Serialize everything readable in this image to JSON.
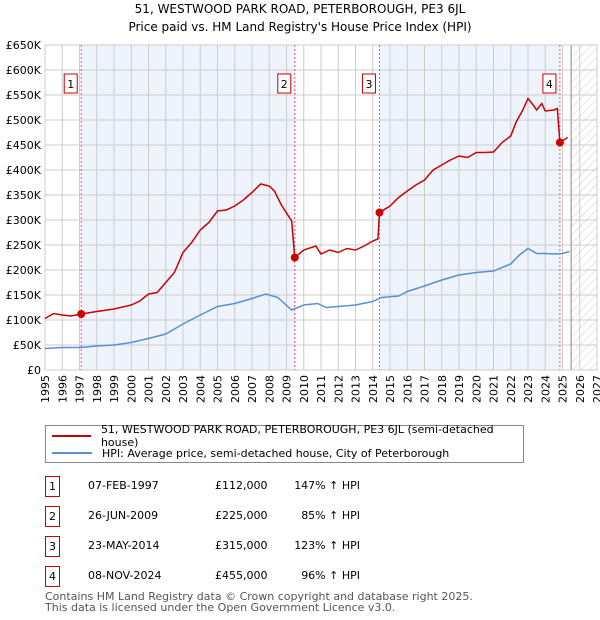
{
  "chart_data": {
    "type": "line",
    "title": "51, WESTWOOD PARK ROAD, PETERBOROUGH, PE3 6JL",
    "subtitle": "Price paid vs. HM Land Registry's House Price Index (HPI)",
    "xlim": [
      1995,
      2027
    ],
    "ylim": [
      0,
      650000
    ],
    "x_ticks": [
      "1995",
      "1996",
      "1997",
      "1998",
      "1999",
      "2000",
      "2001",
      "2002",
      "2003",
      "2004",
      "2005",
      "2006",
      "2007",
      "2008",
      "2009",
      "2010",
      "2011",
      "2012",
      "2013",
      "2014",
      "2015",
      "2016",
      "2017",
      "2018",
      "2019",
      "2020",
      "2021",
      "2022",
      "2023",
      "2024",
      "2025",
      "2026",
      "2027"
    ],
    "y_ticks": [
      "£0",
      "£50K",
      "£100K",
      "£150K",
      "£200K",
      "£250K",
      "£300K",
      "£350K",
      "£400K",
      "£450K",
      "£500K",
      "£550K",
      "£600K",
      "£650K"
    ],
    "grid": true,
    "series": [
      {
        "name": "51, WESTWOOD PARK ROAD, PETERBOROUGH, PE3 6JL (semi-detached house)",
        "color": "#cc0000",
        "points": [
          [
            1995,
            103
          ],
          [
            1995.5,
            113
          ],
          [
            1996,
            110
          ],
          [
            1996.5,
            108
          ],
          [
            1997.1,
            112
          ],
          [
            1998,
            117
          ],
          [
            1999,
            122
          ],
          [
            2000,
            130
          ],
          [
            2000.5,
            138
          ],
          [
            2001,
            152
          ],
          [
            2001.5,
            155
          ],
          [
            2002,
            175
          ],
          [
            2002.5,
            195
          ],
          [
            2003,
            235
          ],
          [
            2003.5,
            255
          ],
          [
            2004,
            280
          ],
          [
            2004.5,
            295
          ],
          [
            2005,
            318
          ],
          [
            2005.5,
            320
          ],
          [
            2006,
            328
          ],
          [
            2006.5,
            340
          ],
          [
            2007,
            355
          ],
          [
            2007.5,
            372
          ],
          [
            2008,
            368
          ],
          [
            2008.3,
            358
          ],
          [
            2008.7,
            330
          ],
          [
            2009.3,
            298
          ],
          [
            2009.48,
            225
          ],
          [
            2010,
            240
          ],
          [
            2010.7,
            248
          ],
          [
            2011,
            232
          ],
          [
            2011.5,
            240
          ],
          [
            2012,
            235
          ],
          [
            2012.5,
            243
          ],
          [
            2013,
            240
          ],
          [
            2013.5,
            248
          ],
          [
            2014,
            258
          ],
          [
            2014.3,
            262
          ],
          [
            2014.39,
            315
          ],
          [
            2015,
            328
          ],
          [
            2015.5,
            345
          ],
          [
            2016,
            358
          ],
          [
            2016.5,
            370
          ],
          [
            2017,
            380
          ],
          [
            2017.5,
            400
          ],
          [
            2018,
            410
          ],
          [
            2018.5,
            420
          ],
          [
            2019,
            428
          ],
          [
            2019.5,
            425
          ],
          [
            2020,
            435
          ],
          [
            2020.5,
            435
          ],
          [
            2021,
            436
          ],
          [
            2021.5,
            455
          ],
          [
            2022,
            468
          ],
          [
            2022.3,
            495
          ],
          [
            2022.7,
            520
          ],
          [
            2023,
            543
          ],
          [
            2023.3,
            530
          ],
          [
            2023.5,
            520
          ],
          [
            2023.8,
            533
          ],
          [
            2024,
            518
          ],
          [
            2024.5,
            520
          ],
          [
            2024.7,
            523
          ],
          [
            2024.85,
            455
          ],
          [
            2025.3,
            465
          ]
        ]
      },
      {
        "name": "HPI: Average price, semi-detached house, City of Peterborough",
        "color": "#5b8fd4",
        "points": [
          [
            1995,
            43
          ],
          [
            1996,
            45
          ],
          [
            1997,
            45
          ],
          [
            1998,
            48
          ],
          [
            1999,
            50
          ],
          [
            2000,
            55
          ],
          [
            2001,
            63
          ],
          [
            2002,
            72
          ],
          [
            2003,
            92
          ],
          [
            2004,
            110
          ],
          [
            2005,
            127
          ],
          [
            2006,
            133
          ],
          [
            2007,
            143
          ],
          [
            2007.8,
            152
          ],
          [
            2008.5,
            145
          ],
          [
            2009.3,
            120
          ],
          [
            2010,
            130
          ],
          [
            2010.8,
            133
          ],
          [
            2011.3,
            125
          ],
          [
            2012,
            127
          ],
          [
            2013,
            130
          ],
          [
            2014,
            137
          ],
          [
            2014.5,
            145
          ],
          [
            2015.5,
            148
          ],
          [
            2016,
            157
          ],
          [
            2017,
            168
          ],
          [
            2018,
            180
          ],
          [
            2019,
            190
          ],
          [
            2020,
            195
          ],
          [
            2021,
            198
          ],
          [
            2022,
            212
          ],
          [
            2022.5,
            230
          ],
          [
            2023,
            243
          ],
          [
            2023.5,
            233
          ],
          [
            2024,
            233
          ],
          [
            2024.5,
            232
          ],
          [
            2025,
            233
          ],
          [
            2025.4,
            237
          ]
        ]
      }
    ],
    "sales": [
      {
        "label": "1",
        "x": 1997.1,
        "value": 112
      },
      {
        "label": "2",
        "x": 2009.48,
        "value": 225
      },
      {
        "label": "3",
        "x": 2014.39,
        "value": 315
      },
      {
        "label": "4",
        "x": 2024.85,
        "value": 455
      }
    ],
    "forecast_start": 2025.5
  },
  "legend": {
    "property": "51, WESTWOOD PARK ROAD, PETERBOROUGH, PE3 6JL (semi-detached house)",
    "hpi": "HPI: Average price, semi-detached house, City of Peterborough"
  },
  "table": [
    {
      "num": "1",
      "date": "07-FEB-1997",
      "price": "£112,000",
      "hpi": "147% ↑ HPI"
    },
    {
      "num": "2",
      "date": "26-JUN-2009",
      "price": "£225,000",
      "hpi": "85% ↑ HPI"
    },
    {
      "num": "3",
      "date": "23-MAY-2014",
      "price": "£315,000",
      "hpi": "123% ↑ HPI"
    },
    {
      "num": "4",
      "date": "08-NOV-2024",
      "price": "£455,000",
      "hpi": "96% ↑ HPI"
    }
  ],
  "footer": [
    "Contains HM Land Registry data © Crown copyright and database right 2025.",
    "This data is licensed under the Open Government Licence v3.0."
  ]
}
